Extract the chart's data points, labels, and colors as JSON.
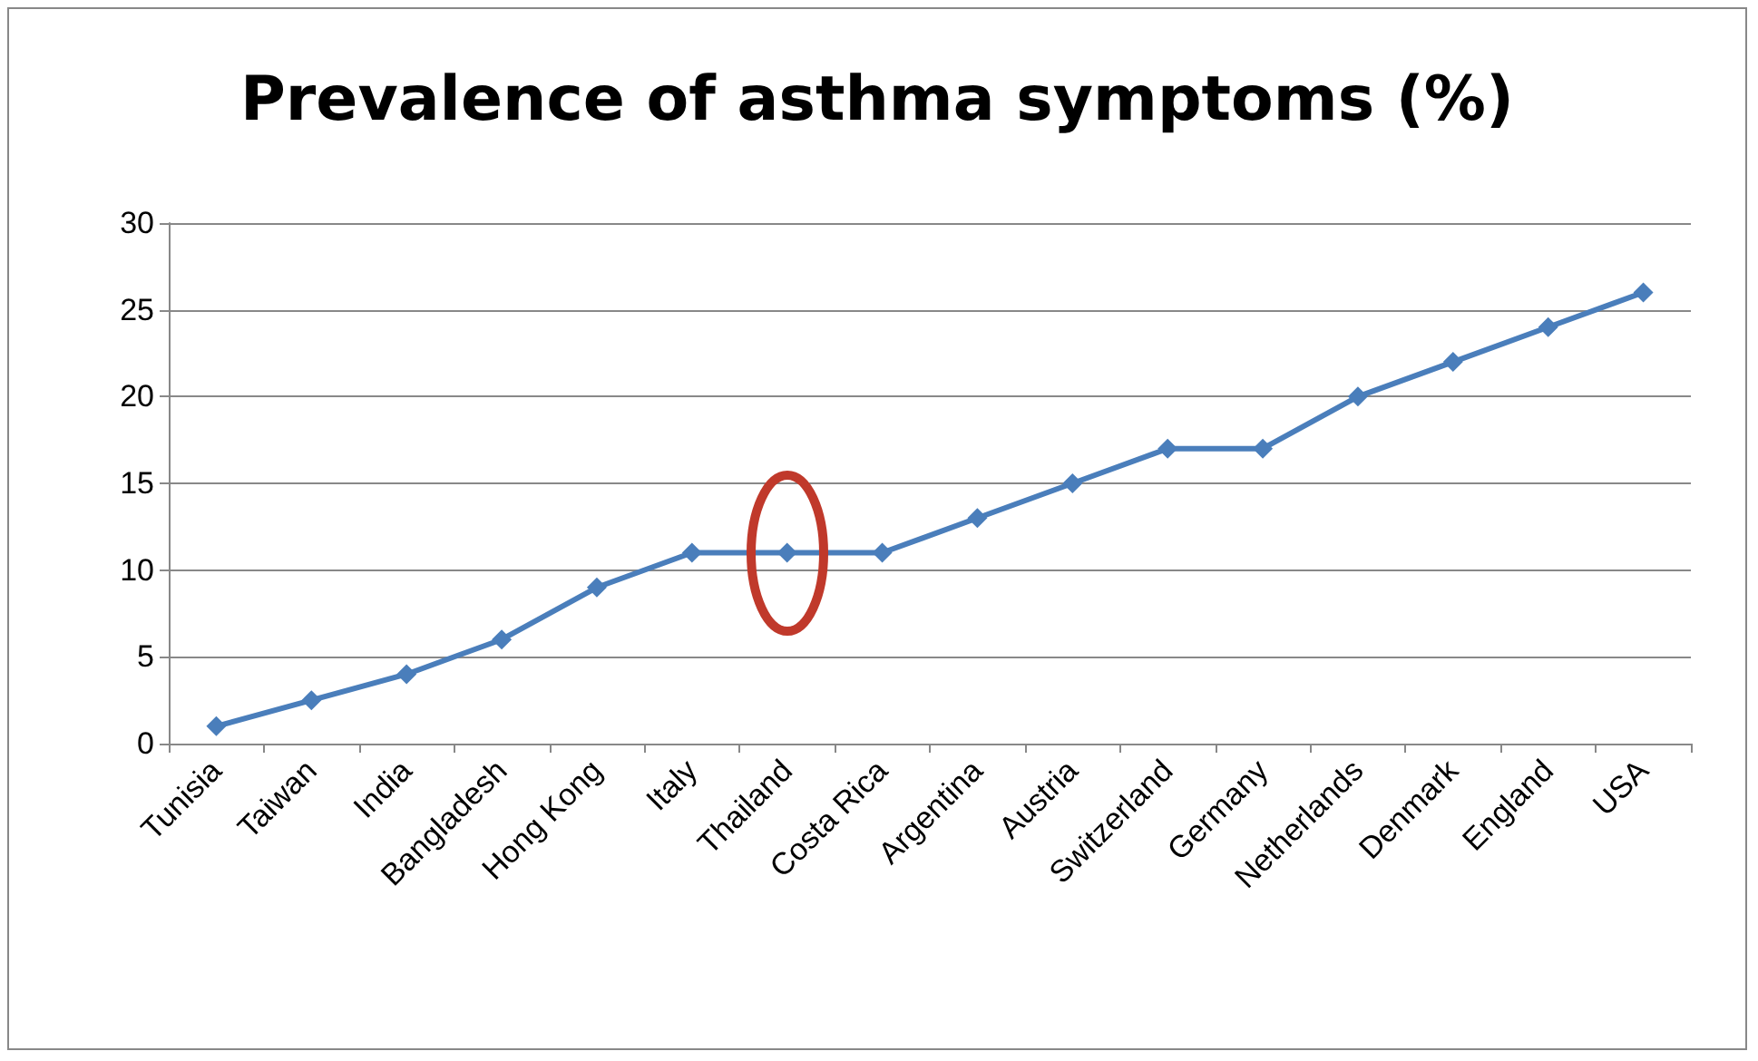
{
  "chart_data": {
    "type": "line",
    "title": "Prevalence of asthma symptoms (%)",
    "categories": [
      "Tunisia",
      "Taiwan",
      "India",
      "Bangladesh",
      "Hong Kong",
      "Italy",
      "Thailand",
      "Costa Rica",
      "Argentina",
      "Austria",
      "Switzerland",
      "Germany",
      "Netherlands",
      "Denmark",
      "England",
      "USA"
    ],
    "series": [
      {
        "color": "#4a7ebb",
        "values": [
          1,
          2.5,
          4,
          6,
          9,
          11,
          11,
          11,
          13,
          15,
          17,
          17,
          20,
          22,
          24,
          26
        ]
      }
    ],
    "ylim": [
      0,
      30
    ],
    "yticks": [
      0,
      5,
      10,
      15,
      20,
      25,
      30
    ],
    "grid": "y",
    "marker": "diamond",
    "line_style": "solid"
  }
}
